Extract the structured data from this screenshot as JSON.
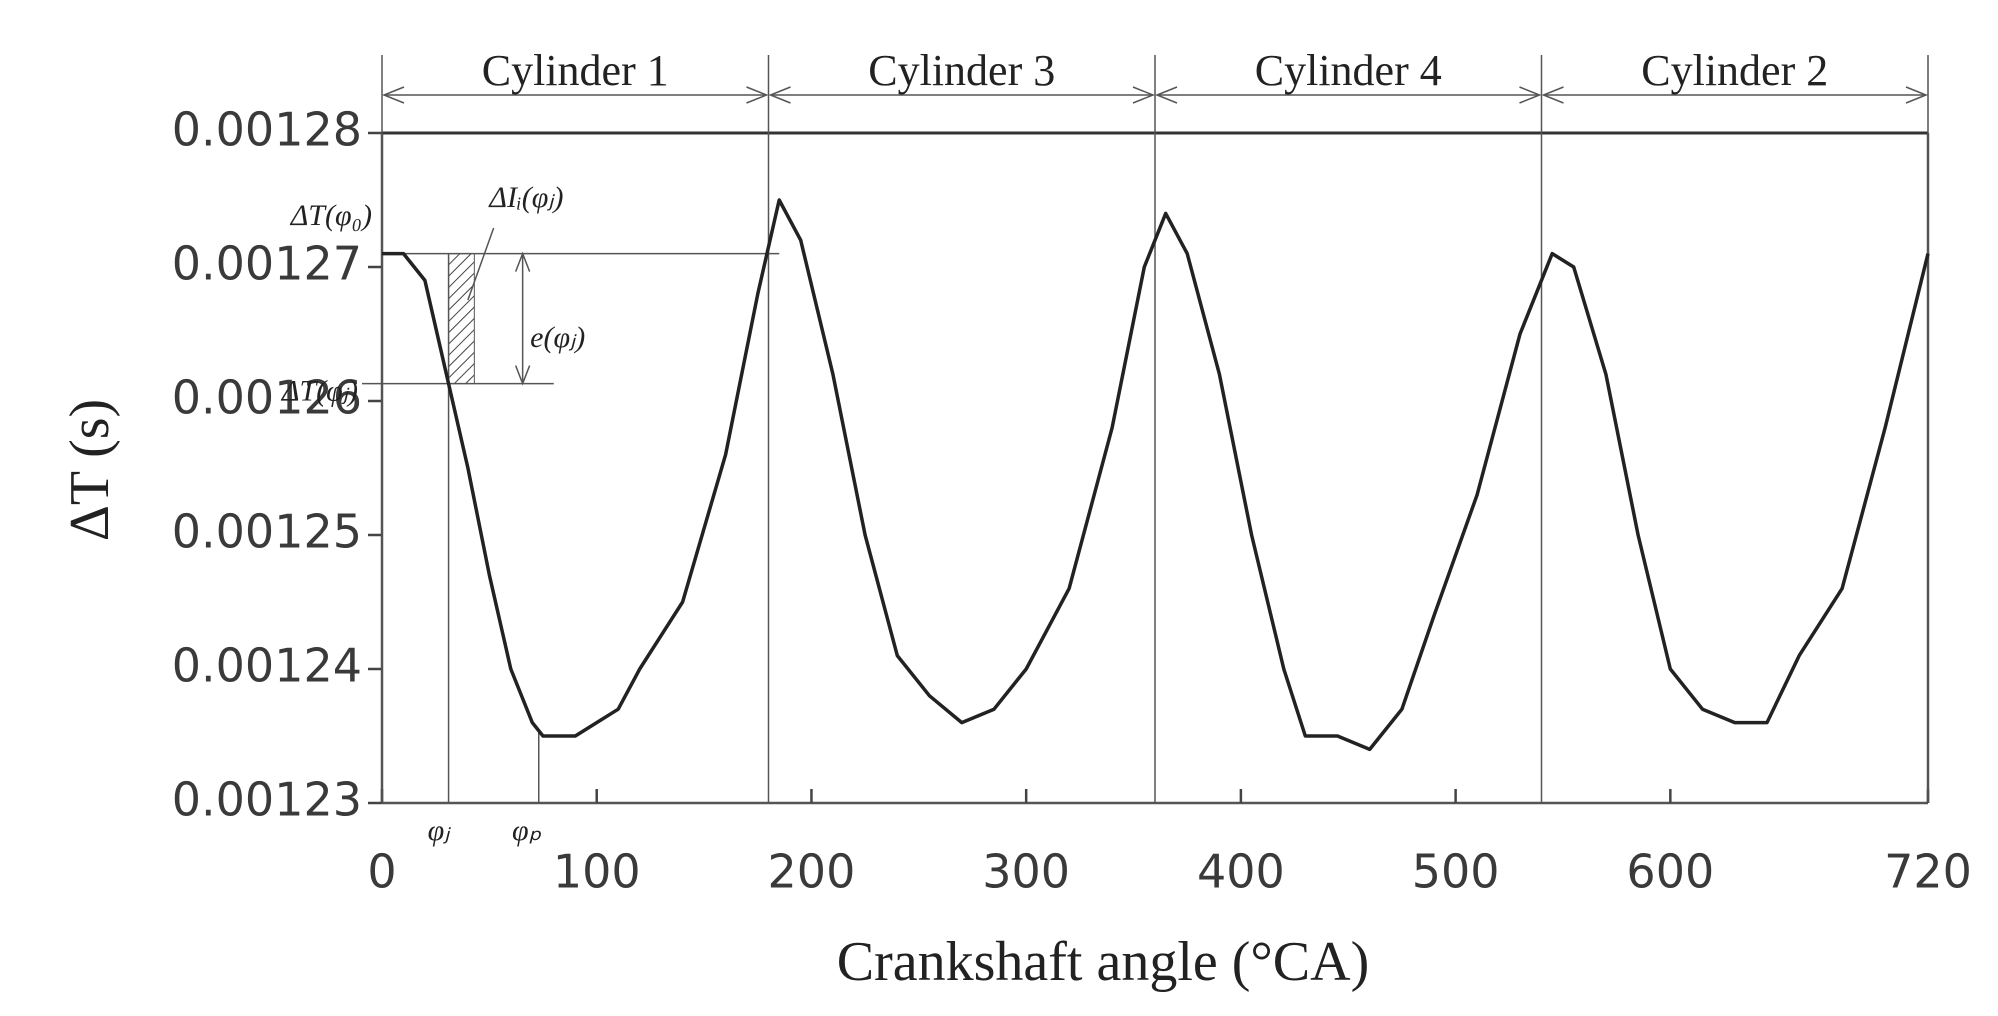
{
  "chart_data": {
    "type": "line",
    "xlabel": "Crankshaft angle (°CA)",
    "ylabel": "ΔT (s)",
    "x": [
      0,
      10,
      20,
      30,
      40,
      50,
      60,
      70,
      75,
      90,
      100,
      110,
      120,
      140,
      160,
      175,
      185,
      195,
      210,
      225,
      240,
      255,
      270,
      285,
      300,
      320,
      340,
      355,
      365,
      375,
      390,
      405,
      420,
      430,
      445,
      460,
      475,
      490,
      510,
      530,
      545,
      555,
      570,
      585,
      600,
      615,
      630,
      645,
      660,
      680,
      700,
      720
    ],
    "values": [
      0.001271,
      0.001271,
      0.001269,
      0.001262,
      0.001255,
      0.001247,
      0.00124,
      0.001236,
      0.001235,
      0.001235,
      0.001236,
      0.001237,
      0.00124,
      0.001245,
      0.001256,
      0.001268,
      0.001275,
      0.001272,
      0.001262,
      0.00125,
      0.001241,
      0.001238,
      0.001236,
      0.001237,
      0.00124,
      0.001246,
      0.001258,
      0.00127,
      0.001274,
      0.001271,
      0.001262,
      0.00125,
      0.00124,
      0.001235,
      0.001235,
      0.001234,
      0.001237,
      0.001244,
      0.001253,
      0.001265,
      0.001271,
      0.00127,
      0.001262,
      0.00125,
      0.00124,
      0.001237,
      0.001236,
      0.001236,
      0.001241,
      0.001246,
      0.001258,
      0.001271
    ],
    "color": "#222222",
    "xlim": [
      0,
      720
    ],
    "xticks": [
      0,
      100,
      200,
      300,
      400,
      500,
      600,
      720
    ],
    "ylim": [
      0.00123,
      0.00128
    ],
    "yticks": [
      0.00123,
      0.00124,
      0.00125,
      0.00126,
      0.00127,
      0.00128
    ],
    "grid": false,
    "boundaries": [
      0,
      180,
      360,
      540,
      720
    ],
    "sections": [
      "Cylinder 1",
      "Cylinder 3",
      "Cylinder 4",
      "Cylinder 2"
    ],
    "annotations": {
      "dT_phi0": "ΔT(φ₀)",
      "dI": "ΔIᵢ(φⱼ)",
      "e": "e(φⱼ)",
      "dT_phij": "ΔT(φⱼ)",
      "phi_j": "φⱼ",
      "phi_p": "φₚ"
    }
  }
}
